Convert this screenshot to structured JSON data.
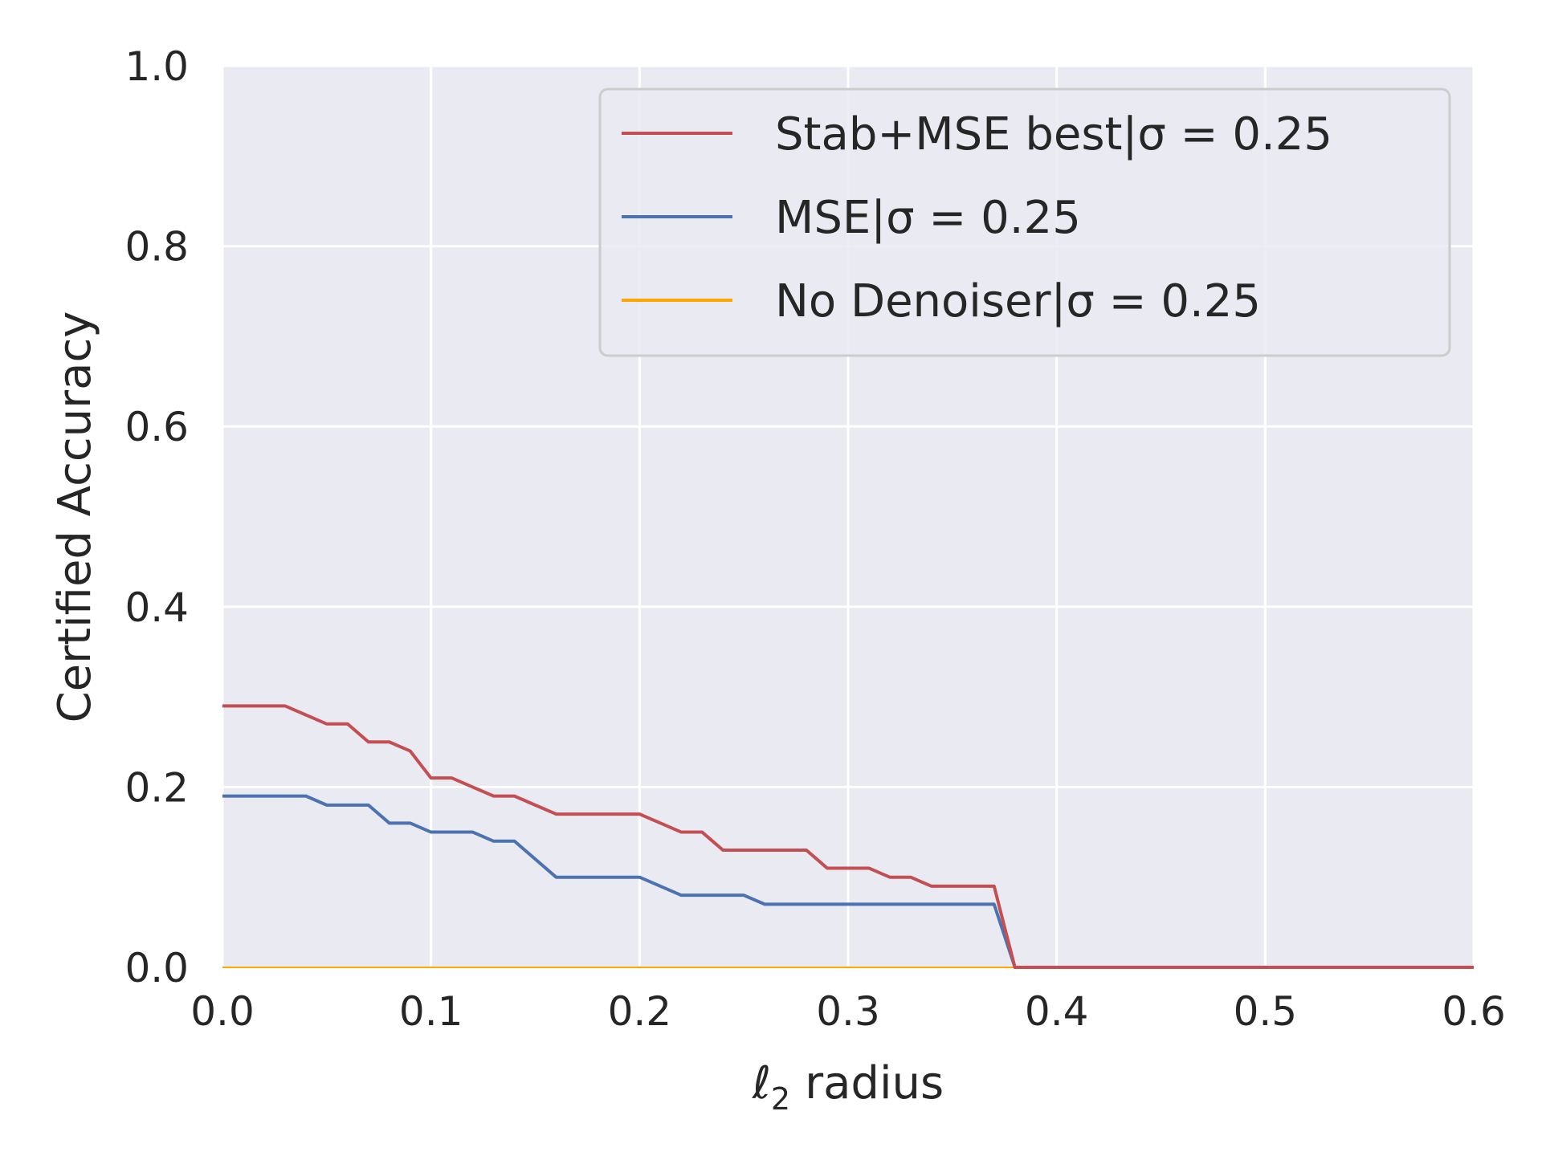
{
  "chart_data": {
    "type": "line",
    "xlabel": "radius",
    "xlabel_symbol": "ℓ",
    "xlabel_subscript": "2",
    "ylabel": "Certified Accuracy",
    "xlim": [
      0.0,
      0.6
    ],
    "ylim": [
      0.0,
      1.0
    ],
    "xticks": [
      "0.0",
      "0.1",
      "0.2",
      "0.3",
      "0.4",
      "0.5",
      "0.6"
    ],
    "yticks": [
      "0.0",
      "0.2",
      "0.4",
      "0.6",
      "0.8",
      "1.0"
    ],
    "grid": true,
    "legend_position": "top-right",
    "background_color": "#EAEAF2",
    "grid_color": "#FFFFFF",
    "series": [
      {
        "name": "Stab+MSE best|σ = 0.25",
        "color": "#C44E52",
        "x": [
          0.0,
          0.03,
          0.05,
          0.06,
          0.07,
          0.08,
          0.09,
          0.1,
          0.11,
          0.12,
          0.13,
          0.14,
          0.15,
          0.16,
          0.2,
          0.21,
          0.22,
          0.23,
          0.24,
          0.28,
          0.29,
          0.31,
          0.32,
          0.33,
          0.34,
          0.37,
          0.38,
          0.6
        ],
        "y": [
          0.29,
          0.29,
          0.27,
          0.27,
          0.25,
          0.25,
          0.24,
          0.21,
          0.21,
          0.2,
          0.19,
          0.19,
          0.18,
          0.17,
          0.17,
          0.16,
          0.15,
          0.15,
          0.13,
          0.13,
          0.11,
          0.11,
          0.1,
          0.1,
          0.09,
          0.09,
          0.0,
          0.0
        ]
      },
      {
        "name": "MSE|σ = 0.25",
        "color": "#4C72B0",
        "x": [
          0.0,
          0.04,
          0.05,
          0.07,
          0.08,
          0.09,
          0.1,
          0.12,
          0.13,
          0.14,
          0.16,
          0.2,
          0.22,
          0.25,
          0.26,
          0.37,
          0.38,
          0.6
        ],
        "y": [
          0.19,
          0.19,
          0.18,
          0.18,
          0.16,
          0.16,
          0.15,
          0.15,
          0.14,
          0.14,
          0.1,
          0.1,
          0.08,
          0.08,
          0.07,
          0.07,
          0.0,
          0.0
        ]
      },
      {
        "name": "No Denoiser|σ = 0.25",
        "color": "#FFA500",
        "x": [
          0.0,
          0.6
        ],
        "y": [
          0.0,
          0.0
        ]
      }
    ]
  }
}
